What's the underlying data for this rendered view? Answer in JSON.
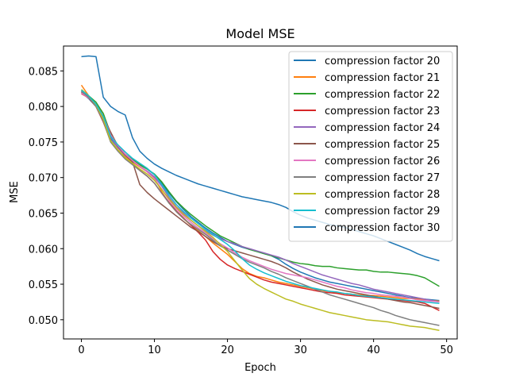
{
  "chart_data": {
    "type": "line",
    "title": "Model MSE",
    "xlabel": "Epoch",
    "ylabel": "MSE",
    "xlim": [
      -2.45,
      51.45
    ],
    "ylim": [
      0.0473,
      0.0885
    ],
    "xticks": [
      0,
      10,
      20,
      30,
      40,
      50
    ],
    "yticks": [
      0.05,
      0.055,
      0.06,
      0.065,
      0.07,
      0.075,
      0.08,
      0.085
    ],
    "ytick_labels": [
      "0.050",
      "0.055",
      "0.060",
      "0.065",
      "0.070",
      "0.075",
      "0.080",
      "0.085"
    ],
    "grid": false,
    "legend_position": "top-right",
    "colors": [
      "#1f77b4",
      "#ff7f0e",
      "#2ca02c",
      "#d62728",
      "#9467bd",
      "#8c564b",
      "#e377c2",
      "#7f7f7f",
      "#bcbd22",
      "#17becf",
      "#1f77b4"
    ],
    "x": [
      0,
      1,
      2,
      3,
      4,
      5,
      6,
      7,
      8,
      9,
      10,
      11,
      12,
      13,
      14,
      15,
      16,
      17,
      18,
      19,
      20,
      21,
      22,
      23,
      24,
      25,
      26,
      27,
      28,
      29,
      30,
      31,
      32,
      33,
      34,
      35,
      36,
      37,
      38,
      39,
      40,
      41,
      42,
      43,
      44,
      45,
      46,
      47,
      48,
      49
    ],
    "series": [
      {
        "name": "compression factor 20",
        "values": [
          0.082,
          0.0811,
          0.08,
          0.078,
          0.0755,
          0.0742,
          0.0733,
          0.0725,
          0.0718,
          0.0712,
          0.0704,
          0.0692,
          0.0678,
          0.0666,
          0.0655,
          0.0645,
          0.0637,
          0.0629,
          0.0622,
          0.0616,
          0.061,
          0.0606,
          0.0602,
          0.0599,
          0.0596,
          0.0593,
          0.059,
          0.0585,
          0.0578,
          0.0572,
          0.0567,
          0.0563,
          0.0559,
          0.0556,
          0.0553,
          0.0551,
          0.0549,
          0.0547,
          0.0545,
          0.0543,
          0.0541,
          0.0539,
          0.0537,
          0.0535,
          0.0533,
          0.0531,
          0.053,
          0.0529,
          0.0528,
          0.0527
        ]
      },
      {
        "name": "compression factor 21",
        "values": [
          0.083,
          0.0815,
          0.0803,
          0.079,
          0.0758,
          0.0742,
          0.073,
          0.0722,
          0.0715,
          0.0708,
          0.07,
          0.068,
          0.0664,
          0.0652,
          0.0642,
          0.0633,
          0.0625,
          0.0617,
          0.0608,
          0.06,
          0.0592,
          0.0582,
          0.0572,
          0.0565,
          0.0561,
          0.0559,
          0.0556,
          0.0553,
          0.0551,
          0.0549,
          0.0547,
          0.0545,
          0.0543,
          0.0541,
          0.054,
          0.0538,
          0.0537,
          0.0536,
          0.0535,
          0.0534,
          0.0534,
          0.0533,
          0.0532,
          0.0531,
          0.053,
          0.053,
          0.0529,
          0.0528,
          0.0527,
          0.0526
        ]
      },
      {
        "name": "compression factor 22",
        "values": [
          0.0822,
          0.0815,
          0.0806,
          0.079,
          0.0762,
          0.0745,
          0.0733,
          0.0725,
          0.0718,
          0.0712,
          0.0705,
          0.0694,
          0.068,
          0.0667,
          0.0657,
          0.0648,
          0.064,
          0.0632,
          0.0625,
          0.0618,
          0.0613,
          0.0608,
          0.0603,
          0.0599,
          0.0596,
          0.0593,
          0.059,
          0.0587,
          0.0584,
          0.0581,
          0.0579,
          0.0578,
          0.0576,
          0.0575,
          0.0575,
          0.0573,
          0.0572,
          0.0571,
          0.057,
          0.057,
          0.0568,
          0.0567,
          0.0567,
          0.0566,
          0.0565,
          0.0564,
          0.0562,
          0.0559,
          0.0553,
          0.0547
        ]
      },
      {
        "name": "compression factor 23",
        "values": [
          0.0818,
          0.0812,
          0.08,
          0.0778,
          0.0752,
          0.0738,
          0.0728,
          0.0719,
          0.071,
          0.0702,
          0.0692,
          0.0678,
          0.0665,
          0.0653,
          0.0643,
          0.0633,
          0.0623,
          0.0612,
          0.0596,
          0.0585,
          0.0577,
          0.0572,
          0.0568,
          0.0564,
          0.056,
          0.0556,
          0.0553,
          0.0551,
          0.0549,
          0.0547,
          0.0545,
          0.0543,
          0.0541,
          0.0539,
          0.0538,
          0.0537,
          0.0535,
          0.0534,
          0.0533,
          0.0532,
          0.0531,
          0.053,
          0.0529,
          0.0528,
          0.0527,
          0.0526,
          0.0525,
          0.0523,
          0.0518,
          0.0513
        ]
      },
      {
        "name": "compression factor 24",
        "values": [
          0.0822,
          0.0814,
          0.0803,
          0.0785,
          0.0757,
          0.0742,
          0.0731,
          0.0723,
          0.0716,
          0.0709,
          0.0701,
          0.0688,
          0.0672,
          0.0659,
          0.065,
          0.064,
          0.0632,
          0.0625,
          0.0619,
          0.0614,
          0.061,
          0.0607,
          0.0603,
          0.06,
          0.0597,
          0.0594,
          0.0591,
          0.0588,
          0.0584,
          0.0579,
          0.0575,
          0.0571,
          0.0567,
          0.0563,
          0.056,
          0.0557,
          0.0554,
          0.0551,
          0.0549,
          0.0546,
          0.0543,
          0.0541,
          0.0539,
          0.0537,
          0.0535,
          0.0533,
          0.0531,
          0.0529,
          0.0527,
          0.0525
        ]
      },
      {
        "name": "compression factor 25",
        "values": [
          0.082,
          0.0812,
          0.0802,
          0.0785,
          0.0764,
          0.0744,
          0.0732,
          0.0722,
          0.069,
          0.0679,
          0.067,
          0.0662,
          0.0654,
          0.0646,
          0.0638,
          0.063,
          0.0624,
          0.0617,
          0.061,
          0.0604,
          0.06,
          0.0597,
          0.0594,
          0.0591,
          0.0588,
          0.0585,
          0.0582,
          0.0578,
          0.0573,
          0.0567,
          0.0562,
          0.0557,
          0.0553,
          0.0549,
          0.0546,
          0.0543,
          0.0541,
          0.0539,
          0.0537,
          0.0535,
          0.0533,
          0.0531,
          0.0529,
          0.0527,
          0.0525,
          0.0524,
          0.0522,
          0.052,
          0.0518,
          0.0516
        ]
      },
      {
        "name": "compression factor 26",
        "values": [
          0.0819,
          0.0812,
          0.0803,
          0.0786,
          0.076,
          0.0745,
          0.0733,
          0.0724,
          0.0716,
          0.0708,
          0.0698,
          0.0684,
          0.0668,
          0.0656,
          0.0646,
          0.0637,
          0.0629,
          0.0622,
          0.0614,
          0.0607,
          0.0601,
          0.0594,
          0.0588,
          0.0583,
          0.0579,
          0.0575,
          0.0571,
          0.0568,
          0.0565,
          0.0563,
          0.0561,
          0.0559,
          0.0556,
          0.0553,
          0.055,
          0.0547,
          0.0545,
          0.0542,
          0.054,
          0.0538,
          0.0537,
          0.0535,
          0.0534,
          0.0533,
          0.0532,
          0.053,
          0.0528,
          0.0527,
          0.0526,
          0.0525
        ]
      },
      {
        "name": "compression factor 27",
        "values": [
          0.0821,
          0.0813,
          0.08,
          0.0779,
          0.075,
          0.0737,
          0.0726,
          0.0718,
          0.071,
          0.0702,
          0.0692,
          0.0678,
          0.0664,
          0.0652,
          0.0642,
          0.0634,
          0.0627,
          0.062,
          0.0612,
          0.0604,
          0.0598,
          0.0592,
          0.0586,
          0.0581,
          0.0577,
          0.0573,
          0.0568,
          0.0564,
          0.0559,
          0.0555,
          0.0551,
          0.0547,
          0.0543,
          0.0539,
          0.0535,
          0.0532,
          0.0529,
          0.0526,
          0.0523,
          0.052,
          0.0517,
          0.0513,
          0.051,
          0.0506,
          0.0503,
          0.05,
          0.0498,
          0.0496,
          0.0494,
          0.0492
        ]
      },
      {
        "name": "compression factor 28",
        "values": [
          0.0824,
          0.0815,
          0.0802,
          0.0782,
          0.0752,
          0.0739,
          0.0728,
          0.072,
          0.0712,
          0.0705,
          0.0696,
          0.0683,
          0.067,
          0.0658,
          0.0648,
          0.064,
          0.0632,
          0.0624,
          0.0616,
          0.0606,
          0.0596,
          0.0583,
          0.057,
          0.0558,
          0.055,
          0.0544,
          0.0539,
          0.0534,
          0.0529,
          0.0526,
          0.0522,
          0.0519,
          0.0516,
          0.0513,
          0.051,
          0.0508,
          0.0506,
          0.0504,
          0.0502,
          0.05,
          0.0499,
          0.0498,
          0.0497,
          0.0495,
          0.0493,
          0.0491,
          0.049,
          0.0489,
          0.0487,
          0.0485
        ]
      },
      {
        "name": "compression factor 29",
        "values": [
          0.0823,
          0.0815,
          0.0803,
          0.0786,
          0.0758,
          0.0746,
          0.0736,
          0.0727,
          0.072,
          0.0713,
          0.0704,
          0.069,
          0.0675,
          0.0662,
          0.0652,
          0.0643,
          0.0635,
          0.0627,
          0.062,
          0.0613,
          0.0606,
          0.0597,
          0.0586,
          0.0577,
          0.0571,
          0.0566,
          0.0562,
          0.0558,
          0.0554,
          0.0551,
          0.0548,
          0.0546,
          0.0544,
          0.0542,
          0.054,
          0.0539,
          0.0537,
          0.0536,
          0.0534,
          0.0533,
          0.0532,
          0.0531,
          0.053,
          0.0529,
          0.0528,
          0.0527,
          0.0526,
          0.0525,
          0.0524,
          0.0523
        ]
      },
      {
        "name": "compression factor 30",
        "values": [
          0.087,
          0.0871,
          0.087,
          0.0813,
          0.08,
          0.0793,
          0.0788,
          0.0756,
          0.0737,
          0.0727,
          0.0719,
          0.0713,
          0.0708,
          0.0703,
          0.0699,
          0.0695,
          0.0691,
          0.0688,
          0.0685,
          0.0682,
          0.0679,
          0.0676,
          0.0673,
          0.0671,
          0.0669,
          0.0667,
          0.0665,
          0.0662,
          0.0658,
          0.0652,
          0.0647,
          0.0643,
          0.064,
          0.0637,
          0.0634,
          0.0632,
          0.063,
          0.0627,
          0.0624,
          0.0621,
          0.0618,
          0.0614,
          0.061,
          0.0606,
          0.0602,
          0.0598,
          0.0593,
          0.0589,
          0.0586,
          0.0583
        ]
      }
    ]
  }
}
